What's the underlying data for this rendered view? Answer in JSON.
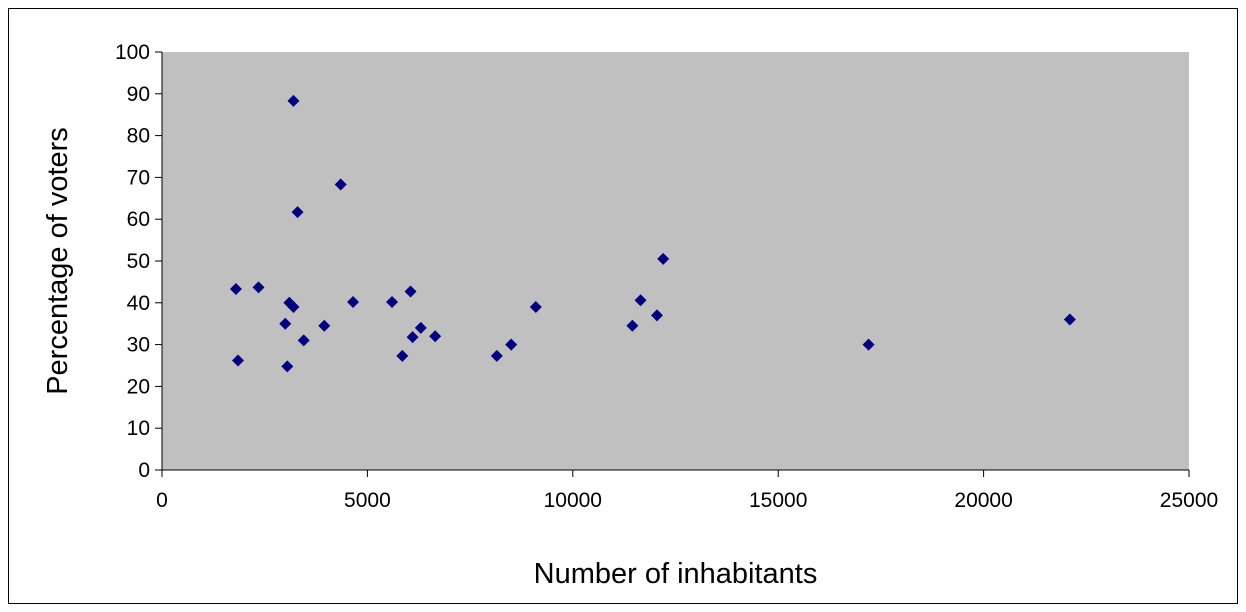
{
  "chart_data": {
    "type": "scatter",
    "title": "",
    "xlabel": "Number of inhabitants",
    "ylabel": "Percentage of voters",
    "xlim": [
      0,
      25000
    ],
    "ylim": [
      0,
      100
    ],
    "x_ticks": [
      0,
      5000,
      10000,
      15000,
      20000,
      25000
    ],
    "y_ticks": [
      0,
      10,
      20,
      30,
      40,
      50,
      60,
      70,
      80,
      90,
      100
    ],
    "grid": false,
    "legend": "none",
    "colors": {
      "plot_area": "#c0c0c0",
      "marker": "#000080",
      "axis": "#000000"
    },
    "marker_shape": "diamond",
    "series": [
      {
        "points": [
          [
            1800,
            43.3
          ],
          [
            1850,
            26.2
          ],
          [
            2350,
            43.7
          ],
          [
            3000,
            35.0
          ],
          [
            3050,
            24.8
          ],
          [
            3100,
            40.0
          ],
          [
            3200,
            39.0
          ],
          [
            3200,
            88.3
          ],
          [
            3300,
            61.7
          ],
          [
            3450,
            31.0
          ],
          [
            3950,
            34.5
          ],
          [
            4350,
            68.3
          ],
          [
            4650,
            40.2
          ],
          [
            5600,
            40.2
          ],
          [
            5850,
            27.3
          ],
          [
            6050,
            42.7
          ],
          [
            6100,
            31.8
          ],
          [
            6300,
            34.0
          ],
          [
            6650,
            32.0
          ],
          [
            8150,
            27.3
          ],
          [
            8500,
            30.0
          ],
          [
            9100,
            39.0
          ],
          [
            11450,
            34.5
          ],
          [
            11650,
            40.6
          ],
          [
            12050,
            37.0
          ],
          [
            12200,
            50.5
          ],
          [
            17200,
            30.0
          ],
          [
            22100,
            36.0
          ]
        ]
      }
    ]
  }
}
